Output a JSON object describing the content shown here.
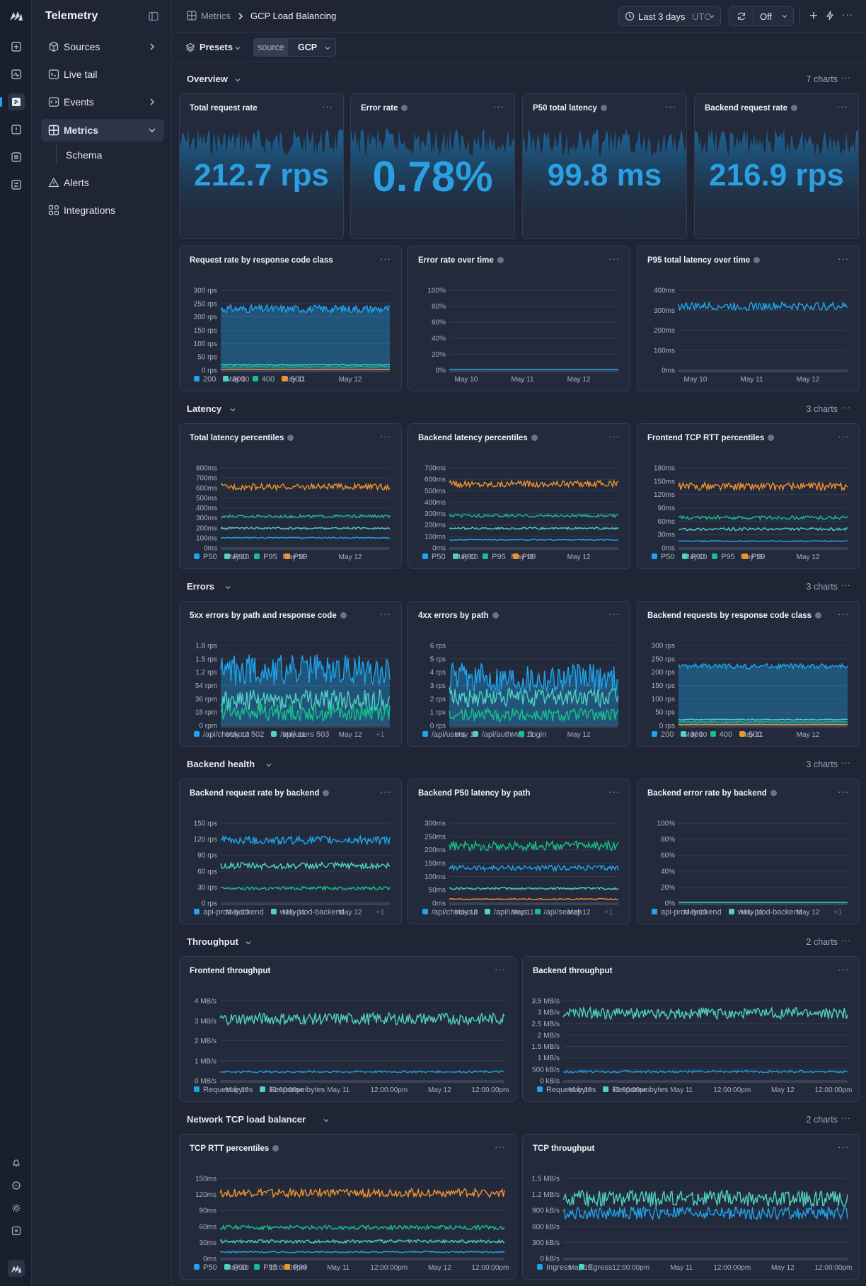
{
  "app": {
    "title": "Telemetry"
  },
  "colors": {
    "accent": "#1fa3ec",
    "s200": "#1fa3ec",
    "s300": "#4fd1c5",
    "s400": "#16c08a",
    "s500": "#f0932b"
  },
  "rail": {
    "icons": [
      "logo-icon",
      "plus-square-icon",
      "activity-icon",
      "logs-icon",
      "alert-square-icon",
      "database-icon",
      "sliders-icon"
    ],
    "bottom_icons": [
      "bell-icon",
      "chat-icon",
      "sun-icon",
      "command-icon",
      "account-icon"
    ]
  },
  "nav": {
    "items": [
      {
        "label": "Sources",
        "icon": "cube-icon",
        "chevron": true
      },
      {
        "label": "Live tail",
        "icon": "terminal-icon",
        "chevron": false
      },
      {
        "label": "Events",
        "icon": "code-icon",
        "chevron": true
      },
      {
        "label": "Metrics",
        "icon": "grid-icon",
        "chevron": true,
        "active": true
      },
      {
        "label": "Alerts",
        "icon": "warning-icon",
        "chevron": false
      },
      {
        "label": "Integrations",
        "icon": "puzzle-icon",
        "chevron": false
      }
    ],
    "sub": {
      "label": "Schema"
    }
  },
  "breadcrumb": {
    "parent": "Metrics",
    "current": "GCP Load Balancing"
  },
  "toolbar": {
    "time_range": "Last 3 days",
    "tz": "UTC",
    "refresh": "Off"
  },
  "filters": {
    "presets": "Presets",
    "key": "source",
    "value": "GCP"
  },
  "sections": [
    {
      "title": "Overview",
      "count": "7 charts"
    },
    {
      "title": "Latency",
      "count": "3 charts"
    },
    {
      "title": "Errors",
      "count": "3 charts"
    },
    {
      "title": "Backend health",
      "count": "3 charts"
    },
    {
      "title": "Throughput",
      "count": "2 charts"
    },
    {
      "title": "Network TCP load balancer",
      "count": "2 charts"
    }
  ],
  "stats": [
    {
      "title": "Total request rate",
      "value": "212.7 rps",
      "info": false
    },
    {
      "title": "Error rate",
      "value": "0.78%",
      "info": true
    },
    {
      "title": "P50 total latency",
      "value": "99.8 ms",
      "info": true
    },
    {
      "title": "Backend request rate",
      "value": "216.9 rps",
      "info": true
    }
  ],
  "chart_data": [
    {
      "id": "c1",
      "type": "area",
      "title": "Request rate by response code class",
      "info": false,
      "ylim": [
        0,
        300
      ],
      "yticks": [
        "300 rps",
        "250 rps",
        "200 rps",
        "150 rps",
        "100 rps",
        "50 rps",
        "0 rps"
      ],
      "xticks": [
        "May 10",
        "May 11",
        "May 12"
      ],
      "series": [
        {
          "name": "200",
          "mean": 230,
          "amp": 15
        },
        {
          "name": "300",
          "mean": 20,
          "amp": 2
        },
        {
          "name": "400",
          "mean": 12,
          "amp": 2
        },
        {
          "name": "500",
          "mean": 3,
          "amp": 1
        }
      ],
      "legend_extra": ""
    },
    {
      "id": "c2",
      "type": "line",
      "title": "Error rate over time",
      "info": true,
      "ylim": [
        0,
        100
      ],
      "yticks": [
        "100%",
        "80%",
        "60%",
        "40%",
        "20%",
        "0%"
      ],
      "xticks": [
        "May 10",
        "May 11",
        "May 12"
      ],
      "series": [
        {
          "name": "",
          "mean": 0.8,
          "amp": 0.3
        }
      ],
      "legend": [],
      "legend_extra": ""
    },
    {
      "id": "c3",
      "type": "line",
      "title": "P95 total latency over time",
      "info": true,
      "ylim": [
        0,
        400
      ],
      "yticks": [
        "400ms",
        "300ms",
        "200ms",
        "100ms",
        "0ms"
      ],
      "xticks": [
        "May 10",
        "May 11",
        "May 12"
      ],
      "series": [
        {
          "name": "",
          "mean": 320,
          "amp": 20
        }
      ],
      "legend": [],
      "legend_extra": ""
    },
    {
      "id": "c4",
      "type": "line",
      "title": "Total latency percentiles",
      "info": true,
      "ylim": [
        0,
        800
      ],
      "yticks": [
        "800ms",
        "700ms",
        "600ms",
        "500ms",
        "400ms",
        "300ms",
        "200ms",
        "100ms",
        "0ms"
      ],
      "xticks": [
        "May 10",
        "May 11",
        "May 12"
      ],
      "series": [
        {
          "name": "P50",
          "mean": 100,
          "amp": 6
        },
        {
          "name": "P90",
          "mean": 195,
          "amp": 10
        },
        {
          "name": "P95",
          "mean": 315,
          "amp": 14
        },
        {
          "name": "P99",
          "mean": 610,
          "amp": 30
        }
      ],
      "legend_extra": ""
    },
    {
      "id": "c5",
      "type": "line",
      "title": "Backend latency percentiles",
      "info": true,
      "ylim": [
        0,
        700
      ],
      "yticks": [
        "700ms",
        "600ms",
        "500ms",
        "400ms",
        "300ms",
        "200ms",
        "100ms",
        "0ms"
      ],
      "xticks": [
        "May 10",
        "May 11",
        "May 12"
      ],
      "series": [
        {
          "name": "P50",
          "mean": 70,
          "amp": 5
        },
        {
          "name": "P90",
          "mean": 170,
          "amp": 9
        },
        {
          "name": "P95",
          "mean": 280,
          "amp": 13
        },
        {
          "name": "P99",
          "mean": 560,
          "amp": 28
        }
      ],
      "legend_extra": ""
    },
    {
      "id": "c6",
      "type": "line",
      "title": "Frontend TCP RTT percentiles",
      "info": true,
      "ylim": [
        0,
        180
      ],
      "yticks": [
        "180ms",
        "150ms",
        "120ms",
        "90ms",
        "60ms",
        "30ms",
        "0ms"
      ],
      "xticks": [
        "May 10",
        "May 11",
        "May 12"
      ],
      "series": [
        {
          "name": "P50",
          "mean": 15,
          "amp": 1.5
        },
        {
          "name": "P90",
          "mean": 42,
          "amp": 3
        },
        {
          "name": "P95",
          "mean": 68,
          "amp": 4
        },
        {
          "name": "P99",
          "mean": 138,
          "amp": 9
        }
      ],
      "legend_extra": ""
    },
    {
      "id": "c7",
      "type": "area",
      "title": "5xx errors by path and response code",
      "info": true,
      "ylim": [
        0,
        1.8
      ],
      "yticks": [
        "1.8 rps",
        "1.5 rps",
        "1.2 rps",
        "54 rpm",
        "36 rpm",
        "18 rpm",
        "0 rpm"
      ],
      "xticks": [
        "May 10",
        "May 11",
        "May 12"
      ],
      "series": [
        {
          "name": "/api/checkout 502",
          "mean": 1.25,
          "amp": 0.35
        },
        {
          "name": "/api/users 503",
          "mean": 0.55,
          "amp": 0.25
        },
        {
          "name": "",
          "mean": 0.3,
          "amp": 0.2
        }
      ],
      "legend_extra": "+1"
    },
    {
      "id": "c8",
      "type": "area",
      "title": "4xx errors by path",
      "info": true,
      "ylim": [
        0,
        6
      ],
      "yticks": [
        "6 rps",
        "5 rps",
        "4 rps",
        "3 rps",
        "2 rps",
        "1 rps",
        "0 rps"
      ],
      "xticks": [
        "May 10",
        "May 11",
        "May 12"
      ],
      "series": [
        {
          "name": "/api/users",
          "mean": 3.6,
          "amp": 1.1
        },
        {
          "name": "/api/auth",
          "mean": 2.1,
          "amp": 0.7
        },
        {
          "name": "/login",
          "mean": 0.8,
          "amp": 0.5
        }
      ],
      "legend_extra": ""
    },
    {
      "id": "c9",
      "type": "area",
      "title": "Backend requests by response code class",
      "info": true,
      "ylim": [
        0,
        300
      ],
      "yticks": [
        "300 rps",
        "250 rps",
        "200 rps",
        "150 rps",
        "100 rps",
        "50 rps",
        "0 rps"
      ],
      "xticks": [
        "May 10",
        "May 11",
        "May 12"
      ],
      "series": [
        {
          "name": "200",
          "mean": 222,
          "amp": 10
        },
        {
          "name": "300",
          "mean": 22,
          "amp": 2
        },
        {
          "name": "400",
          "mean": 13,
          "amp": 2
        },
        {
          "name": "500",
          "mean": 4,
          "amp": 1
        }
      ],
      "legend_extra": ""
    },
    {
      "id": "c10",
      "type": "line",
      "title": "Backend request rate by backend",
      "info": true,
      "ylim": [
        0,
        150
      ],
      "yticks": [
        "150 rps",
        "120 rps",
        "90 rps",
        "60 rps",
        "30 rps",
        "0 rps"
      ],
      "xticks": [
        "May 10",
        "May 11",
        "May 12"
      ],
      "series": [
        {
          "name": "api-prod-backend",
          "mean": 118,
          "amp": 8
        },
        {
          "name": "web-prod-backend",
          "mean": 70,
          "amp": 6
        },
        {
          "name": "",
          "mean": 28,
          "amp": 3
        }
      ],
      "legend_extra": "+1"
    },
    {
      "id": "c11",
      "type": "line",
      "title": "Backend P50 latency by path",
      "info": false,
      "ylim": [
        0,
        300
      ],
      "yticks": [
        "300ms",
        "250ms",
        "200ms",
        "150ms",
        "100ms",
        "50ms",
        "0ms"
      ],
      "xticks": [
        "May 10",
        "May 11",
        "May 12"
      ],
      "series": [
        {
          "name": "/api/checkout",
          "mean": 132,
          "amp": 10
        },
        {
          "name": "/api/users",
          "mean": 55,
          "amp": 4
        },
        {
          "name": "/api/search",
          "mean": 215,
          "amp": 18
        },
        {
          "name": "",
          "mean": 15,
          "amp": 2
        }
      ],
      "legend_extra": "+1"
    },
    {
      "id": "c12",
      "type": "line",
      "title": "Backend error rate by backend",
      "info": true,
      "ylim": [
        0,
        100
      ],
      "yticks": [
        "100%",
        "80%",
        "60%",
        "40%",
        "20%",
        "0%"
      ],
      "xticks": [
        "May 10",
        "May 11",
        "May 12"
      ],
      "series": [
        {
          "name": "api-prod-backend",
          "mean": 0.7,
          "amp": 0.3
        },
        {
          "name": "web-prod-backend",
          "mean": 0.5,
          "amp": 0.3
        },
        {
          "name": "",
          "mean": 0.3,
          "amp": 0.2
        }
      ],
      "legend_extra": "+1"
    },
    {
      "id": "c13",
      "type": "line",
      "title": "Frontend throughput",
      "info": false,
      "ylim": [
        0,
        4
      ],
      "yticks": [
        "4 MB/s",
        "3 MB/s",
        "2 MB/s",
        "1 MB/s",
        "0 MB/s"
      ],
      "xticks": [
        "May 10",
        "12:00:00pm",
        "May 11",
        "12:00:00pm",
        "May 12",
        "12:00:00pm"
      ],
      "series": [
        {
          "name": "Request bytes",
          "mean": 0.45,
          "amp": 0.05
        },
        {
          "name": "Response bytes",
          "mean": 3.1,
          "amp": 0.3
        }
      ],
      "legend_extra": ""
    },
    {
      "id": "c14",
      "type": "line",
      "title": "Backend throughput",
      "info": false,
      "ylim": [
        0,
        3.5
      ],
      "yticks": [
        "3.5 MB/s",
        "3 MB/s",
        "2.5 MB/s",
        "2 MB/s",
        "1.5 MB/s",
        "1 MB/s",
        "500 kB/s",
        "0 kB/s"
      ],
      "xticks": [
        "May 10",
        "12:00:00pm",
        "May 11",
        "12:00:00pm",
        "May 12",
        "12:00:00pm"
      ],
      "series": [
        {
          "name": "Request bytes",
          "mean": 0.4,
          "amp": 0.05
        },
        {
          "name": "Response bytes",
          "mean": 2.95,
          "amp": 0.25
        }
      ],
      "legend_extra": ""
    },
    {
      "id": "c15",
      "type": "line",
      "title": "TCP RTT percentiles",
      "info": true,
      "ylim": [
        0,
        150
      ],
      "yticks": [
        "150ms",
        "120ms",
        "90ms",
        "60ms",
        "30ms",
        "0ms"
      ],
      "xticks": [
        "May 10",
        "12:00:00pm",
        "May 11",
        "12:00:00pm",
        "May 12",
        "12:00:00pm"
      ],
      "series": [
        {
          "name": "P50",
          "mean": 12,
          "amp": 1.5
        },
        {
          "name": "P90",
          "mean": 32,
          "amp": 3
        },
        {
          "name": "P95",
          "mean": 58,
          "amp": 4
        },
        {
          "name": "P99",
          "mean": 123,
          "amp": 8
        }
      ],
      "legend_extra": ""
    },
    {
      "id": "c16",
      "type": "line",
      "title": "TCP throughput",
      "info": false,
      "ylim": [
        0,
        1.5
      ],
      "yticks": [
        "1.5 MB/s",
        "1.2 MB/s",
        "900 kB/s",
        "600 kB/s",
        "300 kB/s",
        "0 kB/s"
      ],
      "xticks": [
        "May 10",
        "12:00:00pm",
        "May 11",
        "12:00:00pm",
        "May 12",
        "12:00:00pm"
      ],
      "series": [
        {
          "name": "Ingress",
          "mean": 0.85,
          "amp": 0.12
        },
        {
          "name": "Egress",
          "mean": 1.12,
          "amp": 0.15
        }
      ],
      "legend_extra": ""
    }
  ]
}
